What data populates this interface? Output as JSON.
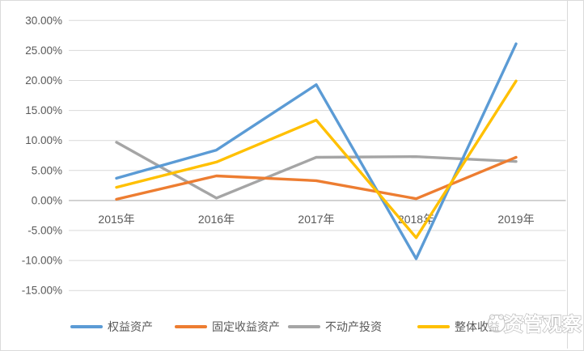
{
  "chart_data": {
    "type": "line",
    "title": "",
    "categories": [
      "2015年",
      "2016年",
      "2017年",
      "2018年",
      "2019年"
    ],
    "series": [
      {
        "name": "权益资产",
        "color": "#5B9BD5",
        "values": [
          3.7,
          8.4,
          19.3,
          -9.7,
          26.1
        ]
      },
      {
        "name": "固定收益资产",
        "color": "#ED7D31",
        "values": [
          0.2,
          4.1,
          3.3,
          0.3,
          7.2
        ]
      },
      {
        "name": "不动产投资",
        "color": "#A5A5A5",
        "values": [
          9.7,
          0.4,
          7.2,
          7.3,
          6.5
        ]
      },
      {
        "name": "整体收益",
        "color": "#FFC000",
        "values": [
          2.2,
          6.4,
          13.4,
          -6.2,
          19.9
        ]
      }
    ],
    "y_axis": {
      "min": -15,
      "max": 30,
      "step": 5,
      "tick_labels": [
        "30.00%",
        "25.00%",
        "20.00%",
        "15.00%",
        "10.00%",
        "5.00%",
        "0.00%",
        "-5.00%",
        "-10.00%",
        "-15.00%"
      ]
    },
    "xlabel": "",
    "ylabel": "",
    "grid": true,
    "legend_position": "bottom",
    "gridline_color": "#d9d9d9",
    "axis_line_color": "#bfbfbf",
    "tick_text_color": "#595959"
  },
  "watermark": {
    "text": "资管观察"
  }
}
